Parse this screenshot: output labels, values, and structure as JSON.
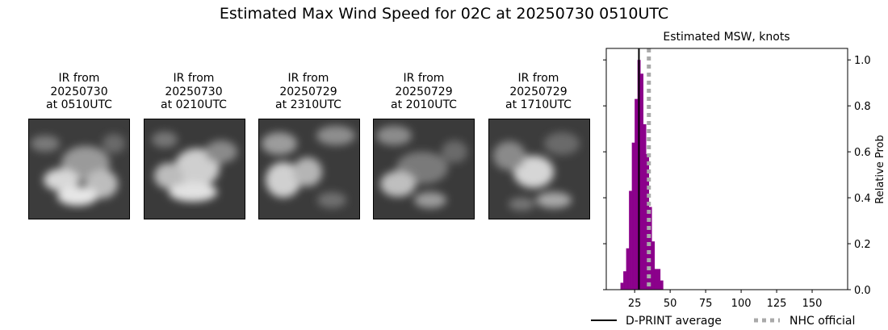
{
  "suptitle": "Estimated Max Wind Speed for 02C at 20250730 0510UTC",
  "ir_panels": [
    {
      "line1": "IR from",
      "line2": "20250730",
      "line3": "at 0510UTC"
    },
    {
      "line1": "IR from",
      "line2": "20250730",
      "line3": "at 0210UTC"
    },
    {
      "line1": "IR from",
      "line2": "20250729",
      "line3": "at 2310UTC"
    },
    {
      "line1": "IR from",
      "line2": "20250729",
      "line3": "at 2010UTC"
    },
    {
      "line1": "IR from",
      "line2": "20250729",
      "line3": "at 1710UTC"
    }
  ],
  "colors": {
    "bars": "#8b008b",
    "average": "#000000",
    "official": "#a9a9a9"
  },
  "chart_data": {
    "type": "bar",
    "title": "Estimated MSW, knots",
    "xlabel": "",
    "ylabel": "Relative Prob",
    "xlim": [
      5,
      175
    ],
    "ylim": [
      0,
      1.05
    ],
    "xticks": [
      25,
      50,
      75,
      100,
      125,
      150
    ],
    "yticks": [
      0.0,
      0.2,
      0.4,
      0.6,
      0.8,
      1.0
    ],
    "y_axis_side": "right",
    "bin_width": 2,
    "bins": [
      {
        "x": 16,
        "value": 0.03
      },
      {
        "x": 18,
        "value": 0.08
      },
      {
        "x": 20,
        "value": 0.18
      },
      {
        "x": 22,
        "value": 0.43
      },
      {
        "x": 24,
        "value": 0.64
      },
      {
        "x": 26,
        "value": 0.83
      },
      {
        "x": 28,
        "value": 1.0
      },
      {
        "x": 30,
        "value": 0.94
      },
      {
        "x": 32,
        "value": 0.72
      },
      {
        "x": 34,
        "value": 0.59
      },
      {
        "x": 36,
        "value": 0.36
      },
      {
        "x": 38,
        "value": 0.21
      },
      {
        "x": 40,
        "value": 0.09
      },
      {
        "x": 42,
        "value": 0.09
      },
      {
        "x": 44,
        "value": 0.04
      }
    ],
    "dprint_average": 28,
    "nhc_official": 35,
    "legend": {
      "placement": "bottom",
      "entries": [
        "D-PRINT average",
        "NHC official"
      ]
    }
  }
}
